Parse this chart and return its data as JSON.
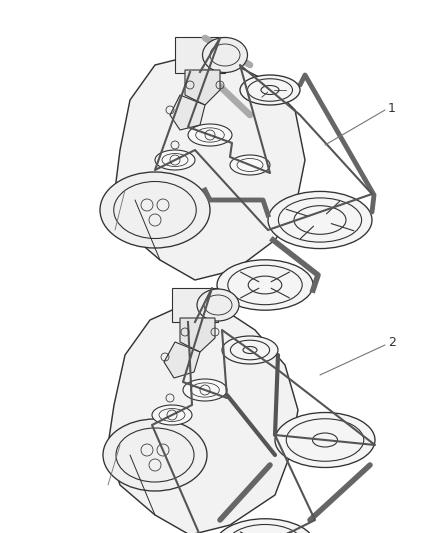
{
  "background_color": "#ffffff",
  "fig_width": 4.39,
  "fig_height": 5.33,
  "dpi": 100,
  "label1_text": "1",
  "label2_text": "2",
  "line_color": "#555555",
  "drawing_color": "#333333",
  "font_size_label": 9
}
